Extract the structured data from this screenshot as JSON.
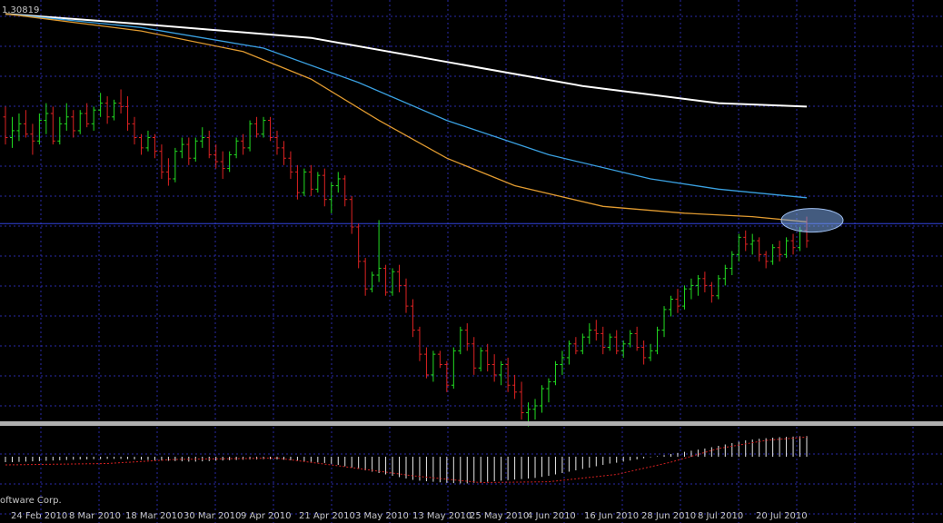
{
  "chart_data": {
    "type": "bar",
    "title": "1.30819",
    "footer": "oftware Corp.",
    "x_ticks": [
      "24 Feb 2010",
      "8 Mar 2010",
      "18 Mar 2010",
      "30 Mar 2010",
      "9 Apr 2010",
      "21 Apr 2010",
      "3 May 2010",
      "13 May 2010",
      "25 May 2010",
      "4 Jun 2010",
      "16 Jun 2010",
      "28 Jun 2010",
      "8 Jul 2010",
      "20 Jul 2010"
    ],
    "grid": true,
    "price_ylim": [
      1.1875,
      1.31
    ],
    "horizontal_level": 1.245,
    "highlight_bar_index": 118,
    "ohlc": [
      [
        1.276,
        1.279,
        1.268,
        1.27
      ],
      [
        1.27,
        1.276,
        1.267,
        1.272
      ],
      [
        1.272,
        1.277,
        1.269,
        1.274
      ],
      [
        1.274,
        1.278,
        1.27,
        1.271
      ],
      [
        1.271,
        1.274,
        1.265,
        1.269
      ],
      [
        1.269,
        1.277,
        1.268,
        1.275
      ],
      [
        1.275,
        1.28,
        1.271,
        1.277
      ],
      [
        1.277,
        1.279,
        1.268,
        1.269
      ],
      [
        1.269,
        1.276,
        1.268,
        1.274
      ],
      [
        1.274,
        1.28,
        1.272,
        1.276
      ],
      [
        1.276,
        1.278,
        1.27,
        1.272
      ],
      [
        1.272,
        1.278,
        1.271,
        1.277
      ],
      [
        1.277,
        1.28,
        1.273,
        1.274
      ],
      [
        1.274,
        1.279,
        1.272,
        1.278
      ],
      [
        1.278,
        1.283,
        1.276,
        1.28
      ],
      [
        1.28,
        1.282,
        1.274,
        1.276
      ],
      [
        1.276,
        1.281,
        1.275,
        1.28
      ],
      [
        1.28,
        1.284,
        1.277,
        1.279
      ],
      [
        1.279,
        1.282,
        1.272,
        1.274
      ],
      [
        1.274,
        1.276,
        1.268,
        1.27
      ],
      [
        1.27,
        1.271,
        1.265,
        1.267
      ],
      [
        1.267,
        1.272,
        1.266,
        1.27
      ],
      [
        1.27,
        1.271,
        1.264,
        1.266
      ],
      [
        1.266,
        1.268,
        1.258,
        1.26
      ],
      [
        1.26,
        1.264,
        1.256,
        1.258
      ],
      [
        1.258,
        1.267,
        1.257,
        1.266
      ],
      [
        1.266,
        1.27,
        1.264,
        1.268
      ],
      [
        1.268,
        1.27,
        1.262,
        1.264
      ],
      [
        1.264,
        1.27,
        1.263,
        1.269
      ],
      [
        1.269,
        1.273,
        1.267,
        1.27
      ],
      [
        1.27,
        1.272,
        1.264,
        1.265
      ],
      [
        1.265,
        1.268,
        1.261,
        1.263
      ],
      [
        1.263,
        1.266,
        1.258,
        1.261
      ],
      [
        1.261,
        1.266,
        1.26,
        1.265
      ],
      [
        1.265,
        1.27,
        1.264,
        1.269
      ],
      [
        1.269,
        1.271,
        1.265,
        1.267
      ],
      [
        1.267,
        1.275,
        1.266,
        1.274
      ],
      [
        1.274,
        1.276,
        1.27,
        1.271
      ],
      [
        1.271,
        1.276,
        1.27,
        1.275
      ],
      [
        1.275,
        1.276,
        1.269,
        1.27
      ],
      [
        1.27,
        1.272,
        1.265,
        1.267
      ],
      [
        1.267,
        1.269,
        1.262,
        1.264
      ],
      [
        1.264,
        1.266,
        1.258,
        1.26
      ],
      [
        1.26,
        1.262,
        1.252,
        1.254
      ],
      [
        1.254,
        1.261,
        1.253,
        1.26
      ],
      [
        1.26,
        1.262,
        1.253,
        1.255
      ],
      [
        1.255,
        1.26,
        1.254,
        1.259
      ],
      [
        1.259,
        1.261,
        1.25,
        1.252
      ],
      [
        1.252,
        1.257,
        1.248,
        1.256
      ],
      [
        1.256,
        1.26,
        1.254,
        1.258
      ],
      [
        1.258,
        1.259,
        1.25,
        1.252
      ],
      [
        1.252,
        1.253,
        1.242,
        1.244
      ],
      [
        1.244,
        1.245,
        1.232,
        1.234
      ],
      [
        1.234,
        1.235,
        1.224,
        1.226
      ],
      [
        1.226,
        1.231,
        1.225,
        1.23
      ],
      [
        1.23,
        1.246,
        1.228,
        1.232
      ],
      [
        1.232,
        1.233,
        1.224,
        1.225
      ],
      [
        1.225,
        1.232,
        1.224,
        1.231
      ],
      [
        1.231,
        1.233,
        1.225,
        1.227
      ],
      [
        1.227,
        1.229,
        1.219,
        1.221
      ],
      [
        1.221,
        1.223,
        1.212,
        1.214
      ],
      [
        1.214,
        1.215,
        1.205,
        1.207
      ],
      [
        1.207,
        1.209,
        1.2,
        1.201
      ],
      [
        1.201,
        1.208,
        1.199,
        1.207
      ],
      [
        1.207,
        1.208,
        1.203,
        1.204
      ],
      [
        1.204,
        1.205,
        1.196,
        1.198
      ],
      [
        1.198,
        1.209,
        1.197,
        1.208
      ],
      [
        1.208,
        1.215,
        1.207,
        1.214
      ],
      [
        1.214,
        1.216,
        1.208,
        1.21
      ],
      [
        1.21,
        1.212,
        1.201,
        1.203
      ],
      [
        1.203,
        1.209,
        1.202,
        1.208
      ],
      [
        1.208,
        1.21,
        1.202,
        1.204
      ],
      [
        1.204,
        1.207,
        1.199,
        1.201
      ],
      [
        1.201,
        1.205,
        1.198,
        1.204
      ],
      [
        1.204,
        1.206,
        1.196,
        1.198
      ],
      [
        1.198,
        1.201,
        1.194,
        1.196
      ],
      [
        1.196,
        1.199,
        1.188,
        1.19
      ],
      [
        1.19,
        1.193,
        1.186,
        1.191
      ],
      [
        1.191,
        1.194,
        1.188,
        1.192
      ],
      [
        1.192,
        1.198,
        1.19,
        1.197
      ],
      [
        1.197,
        1.2,
        1.193,
        1.199
      ],
      [
        1.199,
        1.205,
        1.198,
        1.204
      ],
      [
        1.204,
        1.208,
        1.201,
        1.206
      ],
      [
        1.206,
        1.211,
        1.204,
        1.21
      ],
      [
        1.21,
        1.212,
        1.207,
        1.208
      ],
      [
        1.208,
        1.213,
        1.207,
        1.212
      ],
      [
        1.212,
        1.216,
        1.21,
        1.214
      ],
      [
        1.214,
        1.217,
        1.211,
        1.213
      ],
      [
        1.213,
        1.215,
        1.207,
        1.209
      ],
      [
        1.209,
        1.213,
        1.208,
        1.212
      ],
      [
        1.212,
        1.214,
        1.207,
        1.208
      ],
      [
        1.208,
        1.211,
        1.206,
        1.21
      ],
      [
        1.21,
        1.214,
        1.209,
        1.213
      ],
      [
        1.213,
        1.215,
        1.208,
        1.209
      ],
      [
        1.209,
        1.211,
        1.204,
        1.206
      ],
      [
        1.206,
        1.21,
        1.205,
        1.208
      ],
      [
        1.208,
        1.215,
        1.207,
        1.214
      ],
      [
        1.214,
        1.221,
        1.212,
        1.22
      ],
      [
        1.22,
        1.224,
        1.218,
        1.223
      ],
      [
        1.223,
        1.226,
        1.219,
        1.221
      ],
      [
        1.221,
        1.227,
        1.22,
        1.226
      ],
      [
        1.226,
        1.229,
        1.223,
        1.227
      ],
      [
        1.227,
        1.23,
        1.224,
        1.229
      ],
      [
        1.229,
        1.231,
        1.225,
        1.227
      ],
      [
        1.227,
        1.228,
        1.222,
        1.224
      ],
      [
        1.224,
        1.23,
        1.223,
        1.229
      ],
      [
        1.229,
        1.233,
        1.227,
        1.232
      ],
      [
        1.232,
        1.237,
        1.23,
        1.236
      ],
      [
        1.236,
        1.242,
        1.234,
        1.241
      ],
      [
        1.241,
        1.243,
        1.237,
        1.239
      ],
      [
        1.239,
        1.242,
        1.236,
        1.24
      ],
      [
        1.24,
        1.241,
        1.234,
        1.236
      ],
      [
        1.236,
        1.237,
        1.232,
        1.234
      ],
      [
        1.234,
        1.239,
        1.233,
        1.238
      ],
      [
        1.238,
        1.24,
        1.234,
        1.236
      ],
      [
        1.236,
        1.241,
        1.235,
        1.24
      ],
      [
        1.24,
        1.242,
        1.236,
        1.238
      ],
      [
        1.238,
        1.244,
        1.237,
        1.243
      ],
      [
        1.243,
        1.247,
        1.238,
        1.24
      ]
    ],
    "series": [
      {
        "color": "#ffffff",
        "values": [
          [
            0,
            1.306
          ],
          [
            20,
            1.303
          ],
          [
            45,
            1.299
          ],
          [
            65,
            1.292
          ],
          [
            85,
            1.285
          ],
          [
            105,
            1.28
          ],
          [
            118,
            1.279
          ]
        ]
      },
      {
        "color": "#3aa0e0",
        "values": [
          [
            0,
            1.306
          ],
          [
            20,
            1.302
          ],
          [
            38,
            1.296
          ],
          [
            52,
            1.286
          ],
          [
            65,
            1.275
          ],
          [
            80,
            1.265
          ],
          [
            95,
            1.258
          ],
          [
            105,
            1.255
          ],
          [
            118,
            1.2525
          ]
        ]
      },
      {
        "color": "#e09a30",
        "values": [
          [
            0,
            1.306
          ],
          [
            20,
            1.301
          ],
          [
            35,
            1.295
          ],
          [
            45,
            1.287
          ],
          [
            55,
            1.275
          ],
          [
            65,
            1.264
          ],
          [
            75,
            1.256
          ],
          [
            88,
            1.25
          ],
          [
            100,
            1.248
          ],
          [
            110,
            1.247
          ],
          [
            118,
            1.2455
          ]
        ]
      }
    ],
    "oscillator": {
      "bar_color": "#e8e8e8",
      "signal_color": "#d02020",
      "histogram": [
        -0.2,
        -0.2,
        -0.19,
        -0.18,
        -0.17,
        -0.16,
        -0.15,
        -0.14,
        -0.13,
        -0.12,
        -0.11,
        -0.1,
        -0.1,
        -0.09,
        -0.09,
        -0.08,
        -0.08,
        -0.08,
        -0.09,
        -0.1,
        -0.11,
        -0.12,
        -0.13,
        -0.14,
        -0.15,
        -0.16,
        -0.17,
        -0.18,
        -0.18,
        -0.17,
        -0.16,
        -0.15,
        -0.14,
        -0.13,
        -0.12,
        -0.11,
        -0.1,
        -0.1,
        -0.09,
        -0.09,
        -0.1,
        -0.11,
        -0.13,
        -0.15,
        -0.17,
        -0.19,
        -0.21,
        -0.23,
        -0.26,
        -0.3,
        -0.35,
        -0.4,
        -0.45,
        -0.5,
        -0.55,
        -0.6,
        -0.65,
        -0.7,
        -0.75,
        -0.8,
        -0.85,
        -0.88,
        -0.9,
        -0.92,
        -0.94,
        -0.96,
        -0.97,
        -0.98,
        -0.98,
        -0.96,
        -0.94,
        -0.92,
        -0.9,
        -0.88,
        -0.86,
        -0.84,
        -0.82,
        -0.8,
        -0.78,
        -0.74,
        -0.7,
        -0.65,
        -0.6,
        -0.55,
        -0.5,
        -0.45,
        -0.4,
        -0.35,
        -0.3,
        -0.25,
        -0.22,
        -0.18,
        -0.14,
        -0.1,
        -0.06,
        -0.02,
        0.02,
        0.06,
        0.1,
        0.14,
        0.18,
        0.22,
        0.26,
        0.3,
        0.35,
        0.4,
        0.45,
        0.5,
        0.55,
        0.6,
        0.63,
        0.66,
        0.68,
        0.7,
        0.72,
        0.73,
        0.74,
        0.75,
        0.76
      ],
      "signal": [
        [
          0,
          -0.3
        ],
        [
          15,
          -0.25
        ],
        [
          25,
          -0.1
        ],
        [
          40,
          -0.05
        ],
        [
          48,
          -0.3
        ],
        [
          60,
          -0.7
        ],
        [
          70,
          -0.95
        ],
        [
          80,
          -0.92
        ],
        [
          90,
          -0.65
        ],
        [
          98,
          -0.2
        ],
        [
          105,
          0.3
        ],
        [
          112,
          0.6
        ],
        [
          118,
          0.72
        ]
      ]
    }
  }
}
